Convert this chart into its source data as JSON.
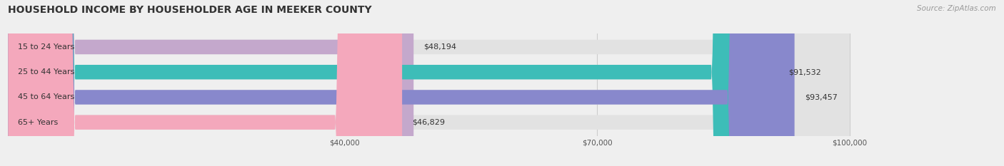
{
  "title": "HOUSEHOLD INCOME BY HOUSEHOLDER AGE IN MEEKER COUNTY",
  "source": "Source: ZipAtlas.com",
  "categories": [
    "15 to 24 Years",
    "25 to 44 Years",
    "45 to 64 Years",
    "65+ Years"
  ],
  "values": [
    48194,
    91532,
    93457,
    46829
  ],
  "bar_colors": [
    "#c4a8cc",
    "#3dbdb8",
    "#8888cc",
    "#f4a8bc"
  ],
  "value_labels": [
    "$48,194",
    "$91,532",
    "$93,457",
    "$46,829"
  ],
  "xmin": 0,
  "xmax": 100000,
  "xticks": [
    40000,
    70000,
    100000
  ],
  "xtick_labels": [
    "$40,000",
    "$70,000",
    "$100,000"
  ],
  "background_color": "#efefef",
  "bar_background_color": "#e2e2e2",
  "title_fontsize": 10,
  "source_fontsize": 7.5,
  "label_fontsize": 8,
  "value_fontsize": 8,
  "bar_height": 0.58
}
